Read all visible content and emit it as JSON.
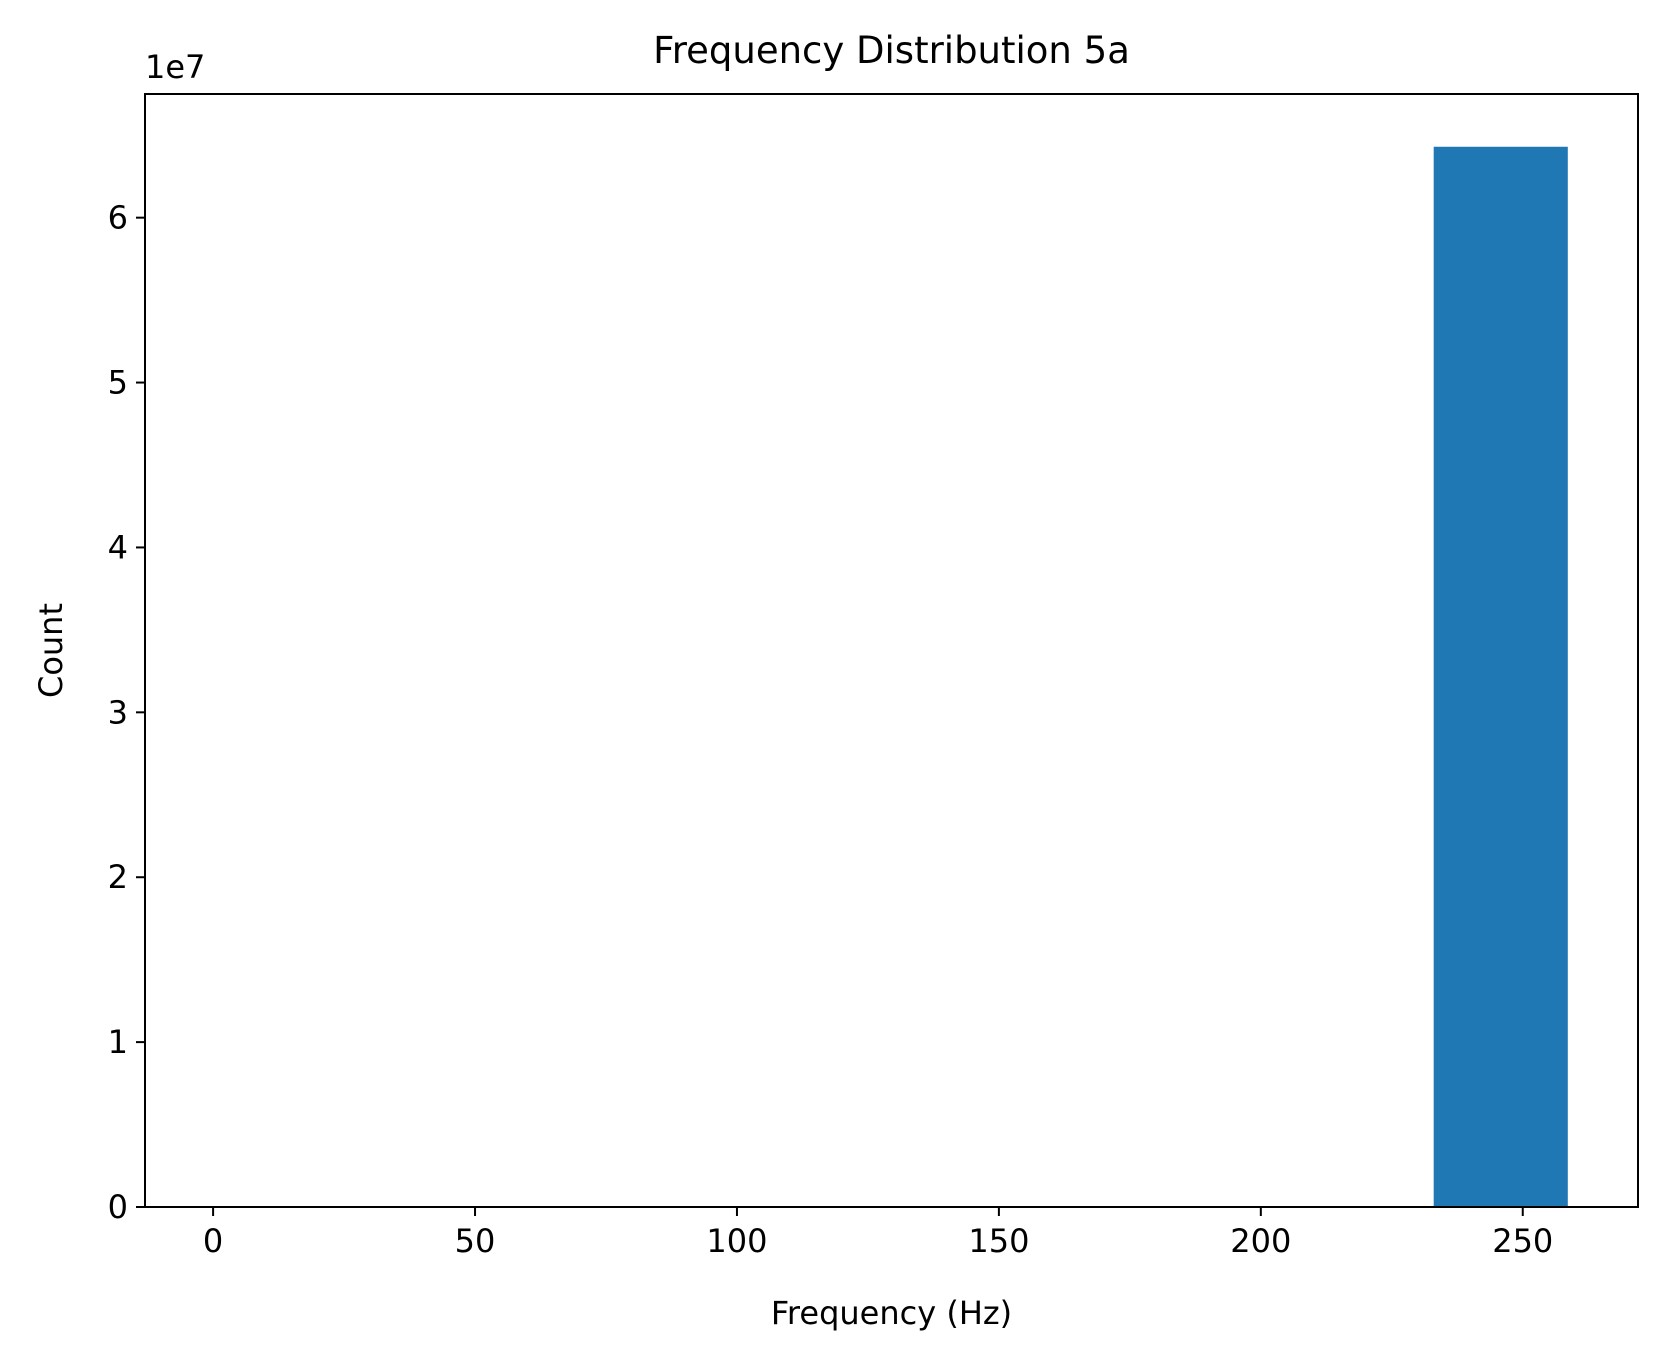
{
  "colors": {
    "bar": "#1f77b4",
    "axes": "#000000",
    "background": "#ffffff"
  },
  "chart_data": {
    "type": "bar",
    "title": "Frequency Distribution 5a",
    "xlabel": "Frequency (Hz)",
    "ylabel": "Count",
    "y_offset_label": "1e7",
    "xlim": [
      -13,
      272
    ],
    "ylim": [
      0,
      6.75
    ],
    "y_scale_factor": 10000000,
    "x_ticks": [
      0,
      50,
      100,
      150,
      200,
      250
    ],
    "x_tick_labels": [
      "0",
      "50",
      "100",
      "150",
      "200",
      "250"
    ],
    "y_ticks": [
      0,
      1,
      2,
      3,
      4,
      5,
      6
    ],
    "y_tick_labels": [
      "0",
      "1",
      "2",
      "3",
      "4",
      "5",
      "6"
    ],
    "grid": false,
    "legend": "none",
    "bins": [
      {
        "x_start": 233,
        "x_end": 258.6,
        "value": 6.43
      }
    ]
  }
}
